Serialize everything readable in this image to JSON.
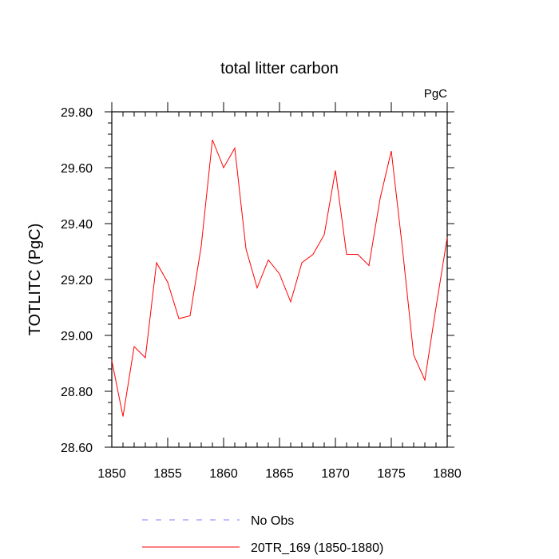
{
  "chart_data": {
    "type": "line",
    "title": "total litter carbon",
    "units_label": "PgC",
    "ylabel": "TOTLITC  (PgC)",
    "xlabel": "",
    "xlim": [
      1850,
      1880
    ],
    "ylim": [
      28.6,
      29.8
    ],
    "x_ticks": [
      1850,
      1855,
      1860,
      1865,
      1870,
      1875,
      1880
    ],
    "x_tick_labels": [
      "1850",
      "1855",
      "1860",
      "1865",
      "1870",
      "1875",
      "1880"
    ],
    "y_ticks": [
      28.6,
      28.8,
      29.0,
      29.2,
      29.4,
      29.6,
      29.8
    ],
    "y_tick_labels": [
      "28.60",
      "28.80",
      "29.00",
      "29.20",
      "29.40",
      "29.60",
      "29.80"
    ],
    "grid": false,
    "legend_position": "bottom",
    "series": [
      {
        "name": "20TR_169 (1850-1880)",
        "color": "#ff0000",
        "style": "solid",
        "x": [
          1850,
          1851,
          1852,
          1853,
          1854,
          1855,
          1856,
          1857,
          1858,
          1859,
          1860,
          1861,
          1862,
          1863,
          1864,
          1865,
          1866,
          1867,
          1868,
          1869,
          1870,
          1871,
          1872,
          1873,
          1874,
          1875,
          1876,
          1877,
          1878,
          1879,
          1880
        ],
        "values": [
          28.91,
          28.71,
          28.96,
          28.92,
          29.26,
          29.19,
          29.06,
          29.07,
          29.32,
          29.7,
          29.6,
          29.67,
          29.31,
          29.17,
          29.27,
          29.22,
          29.12,
          29.26,
          29.29,
          29.36,
          29.59,
          29.29,
          29.29,
          29.25,
          29.49,
          29.66,
          29.31,
          28.93,
          28.84,
          29.1,
          29.35
        ]
      }
    ],
    "legend": [
      {
        "label": "No Obs",
        "color": "#7f7fff",
        "style": "dashed"
      },
      {
        "label": "20TR_169 (1850-1880)",
        "color": "#ff0000",
        "style": "solid"
      }
    ]
  }
}
